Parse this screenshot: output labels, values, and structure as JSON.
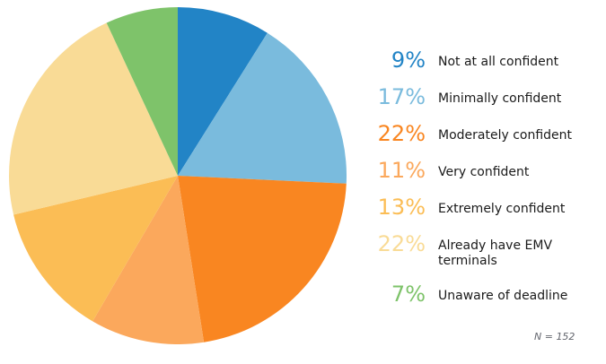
{
  "chart_data": {
    "type": "pie",
    "start_angle_deg": 0,
    "direction": "clockwise",
    "legend_position": "right",
    "series": [
      {
        "label": "Not at all confident",
        "value": 9,
        "pct_label": "9%",
        "color": "#2284C6"
      },
      {
        "label": "Minimally confident",
        "value": 17,
        "pct_label": "17%",
        "color": "#7ABBDD"
      },
      {
        "label": "Moderately confident",
        "value": 22,
        "pct_label": "22%",
        "color": "#F98621"
      },
      {
        "label": "Very confident",
        "value": 11,
        "pct_label": "11%",
        "color": "#FBA85C"
      },
      {
        "label": "Extremely confident",
        "value": 13,
        "pct_label": "13%",
        "color": "#FBBD55"
      },
      {
        "label": "Already have EMV terminals",
        "value": 22,
        "pct_label": "22%",
        "color": "#F9DB96"
      },
      {
        "label": "Unaware of deadline",
        "value": 7,
        "pct_label": "7%",
        "color": "#7EC36A"
      }
    ],
    "sample_size_note": "N = 152"
  }
}
